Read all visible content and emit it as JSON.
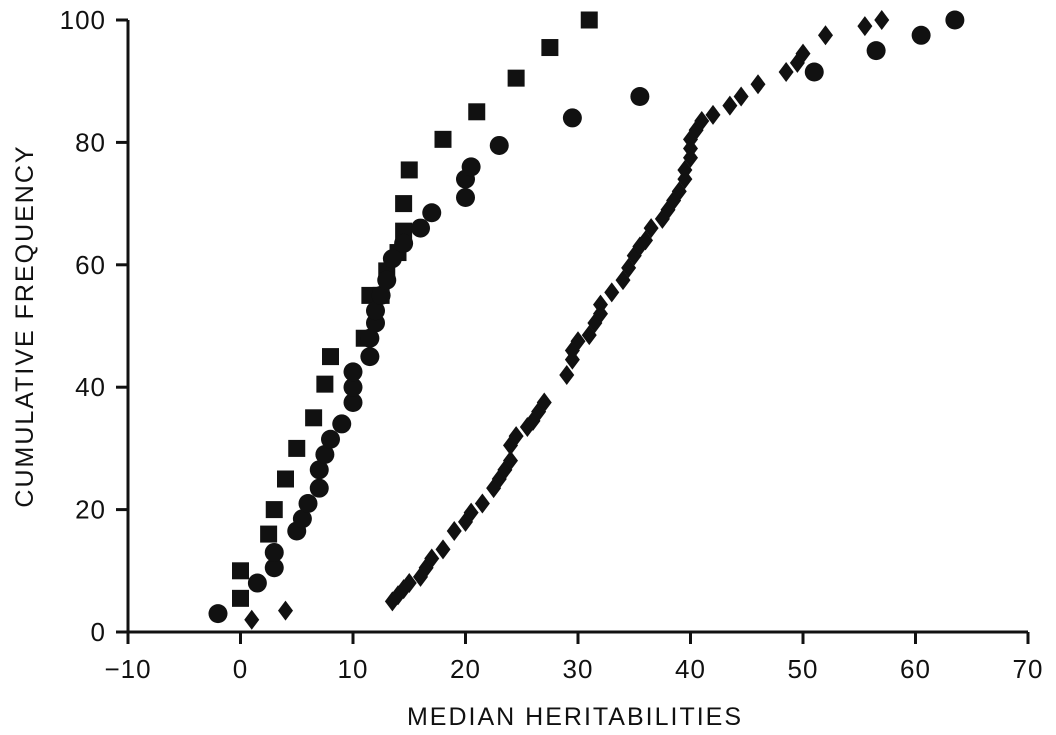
{
  "chart_data": {
    "type": "scatter",
    "title": "",
    "xlabel": "MEDIAN HERITABILITIES",
    "ylabel": "CUMULATIVE FREQUENCY",
    "xlim": [
      -10,
      70
    ],
    "ylim": [
      0,
      100
    ],
    "xticks": [
      -10,
      0,
      10,
      20,
      30,
      40,
      50,
      60,
      70
    ],
    "yticks": [
      0,
      20,
      40,
      60,
      80,
      100
    ],
    "grid": false,
    "legend": "none",
    "series": [
      {
        "marker": "square",
        "points": [
          [
            0,
            5.5
          ],
          [
            0,
            10
          ],
          [
            2.5,
            16
          ],
          [
            3,
            20
          ],
          [
            4,
            25
          ],
          [
            5,
            30
          ],
          [
            6.5,
            35
          ],
          [
            7.5,
            40.5
          ],
          [
            8,
            45
          ],
          [
            11,
            48
          ],
          [
            11.5,
            55
          ],
          [
            12.5,
            55
          ],
          [
            13,
            59
          ],
          [
            14,
            62
          ],
          [
            14.5,
            65.5
          ],
          [
            14.5,
            70
          ],
          [
            15,
            75.5
          ],
          [
            18,
            80.5
          ],
          [
            21,
            85
          ],
          [
            24.5,
            90.5
          ],
          [
            27.5,
            95.5
          ],
          [
            31,
            100
          ]
        ]
      },
      {
        "marker": "circle",
        "points": [
          [
            -2,
            3
          ],
          [
            1.5,
            8
          ],
          [
            3,
            10.5
          ],
          [
            3,
            13
          ],
          [
            5,
            16.5
          ],
          [
            5.5,
            18.5
          ],
          [
            6,
            21
          ],
          [
            7,
            23.5
          ],
          [
            7,
            26.5
          ],
          [
            7.5,
            29
          ],
          [
            8,
            31.5
          ],
          [
            9,
            34
          ],
          [
            10,
            37.5
          ],
          [
            10,
            40
          ],
          [
            10,
            42.5
          ],
          [
            11.5,
            45
          ],
          [
            11.5,
            48
          ],
          [
            12,
            50.5
          ],
          [
            12,
            52.5
          ],
          [
            12.5,
            55
          ],
          [
            13,
            57.5
          ],
          [
            13.5,
            61
          ],
          [
            14.5,
            63.5
          ],
          [
            16,
            66
          ],
          [
            17,
            68.5
          ],
          [
            20,
            71
          ],
          [
            20,
            74
          ],
          [
            20.5,
            76
          ],
          [
            23,
            79.5
          ],
          [
            29.5,
            84
          ],
          [
            35.5,
            87.5
          ],
          [
            51,
            91.5
          ],
          [
            56.5,
            95
          ],
          [
            60.5,
            97.5
          ],
          [
            63.5,
            100
          ]
        ]
      },
      {
        "marker": "diamond",
        "points": [
          [
            1,
            2
          ],
          [
            4,
            3.5
          ],
          [
            13.5,
            5
          ],
          [
            14,
            6
          ],
          [
            14.5,
            7
          ],
          [
            15,
            8
          ],
          [
            16,
            9
          ],
          [
            16.5,
            10.5
          ],
          [
            17,
            12
          ],
          [
            18,
            13.5
          ],
          [
            19,
            16.5
          ],
          [
            20,
            18
          ],
          [
            20.5,
            19.5
          ],
          [
            21.5,
            21
          ],
          [
            22.5,
            23.5
          ],
          [
            23,
            25
          ],
          [
            23.5,
            26.5
          ],
          [
            24,
            28
          ],
          [
            24,
            30.5
          ],
          [
            24.5,
            32
          ],
          [
            25.5,
            33.5
          ],
          [
            26,
            34.5
          ],
          [
            26.5,
            36
          ],
          [
            27,
            37.5
          ],
          [
            29,
            42
          ],
          [
            29.5,
            44.5
          ],
          [
            29.5,
            46
          ],
          [
            30,
            47.5
          ],
          [
            31,
            48.5
          ],
          [
            31.5,
            50.5
          ],
          [
            32,
            52
          ],
          [
            32,
            53.5
          ],
          [
            33,
            55.5
          ],
          [
            34,
            57.5
          ],
          [
            34.5,
            59.5
          ],
          [
            35,
            61.5
          ],
          [
            35.5,
            63
          ],
          [
            36,
            64
          ],
          [
            36.5,
            66
          ],
          [
            37.5,
            67.5
          ],
          [
            38,
            69
          ],
          [
            38.5,
            70.5
          ],
          [
            39,
            72
          ],
          [
            39.5,
            74
          ],
          [
            39.5,
            75.5
          ],
          [
            40,
            77.5
          ],
          [
            40,
            79
          ],
          [
            40,
            80.5
          ],
          [
            40.5,
            82
          ],
          [
            41,
            83.5
          ],
          [
            42,
            84.5
          ],
          [
            43.5,
            86
          ],
          [
            44.5,
            87.5
          ],
          [
            46,
            89.5
          ],
          [
            48.5,
            91.5
          ],
          [
            49.5,
            93
          ],
          [
            50,
            94.5
          ],
          [
            52,
            97.5
          ],
          [
            55.5,
            99
          ],
          [
            57,
            100
          ]
        ]
      }
    ]
  }
}
